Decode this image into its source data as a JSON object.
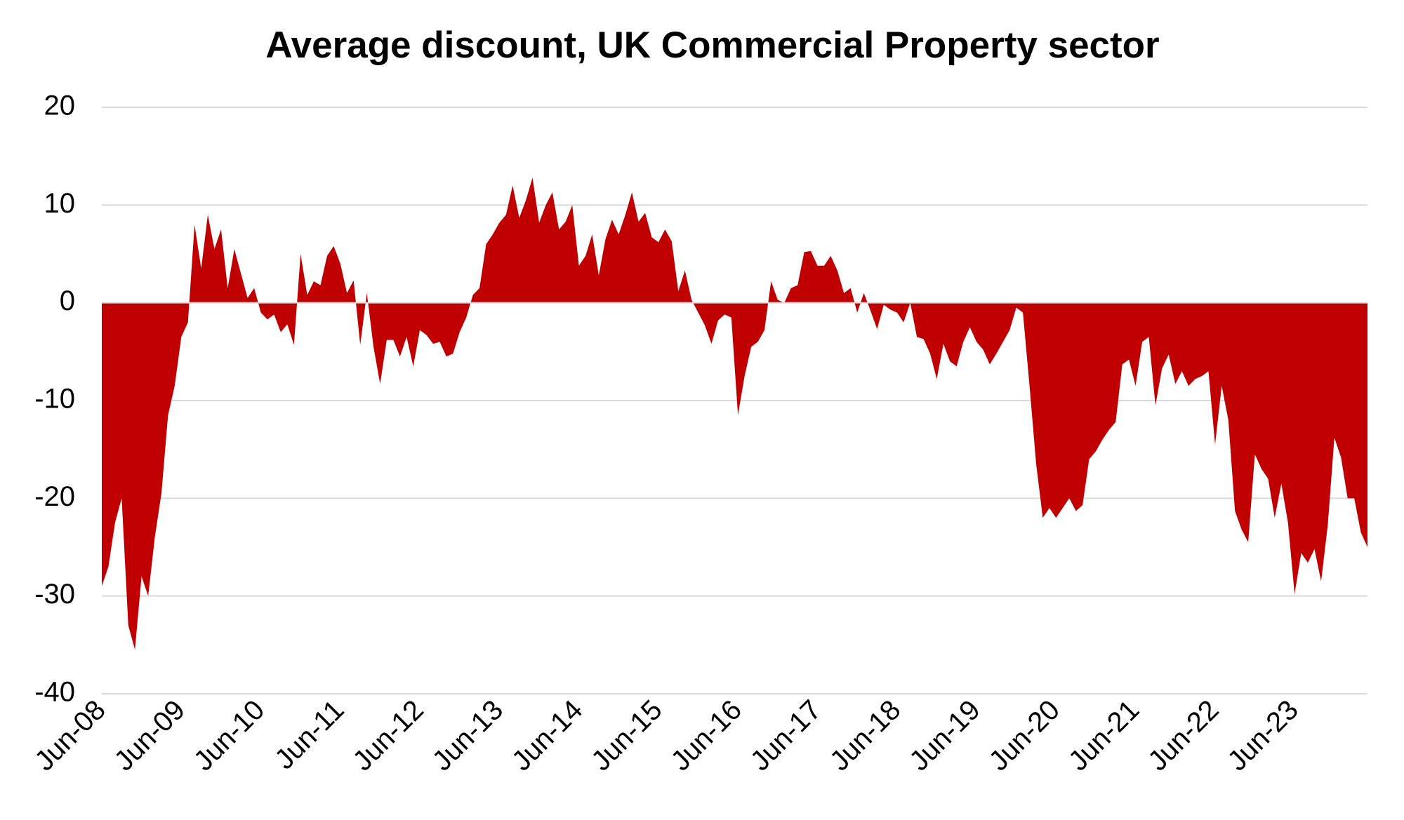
{
  "chart_data": {
    "type": "area",
    "title": "Average discount, UK Commercial Property sector",
    "categories": [
      "Jun-08",
      null,
      null,
      null,
      null,
      null,
      null,
      null,
      null,
      null,
      null,
      null,
      "Jun-09",
      null,
      null,
      null,
      null,
      null,
      null,
      null,
      null,
      null,
      null,
      null,
      "Jun-10",
      null,
      null,
      null,
      null,
      null,
      null,
      null,
      null,
      null,
      null,
      null,
      "Jun-11",
      null,
      null,
      null,
      null,
      null,
      null,
      null,
      null,
      null,
      null,
      null,
      "Jun-12",
      null,
      null,
      null,
      null,
      null,
      null,
      null,
      null,
      null,
      null,
      null,
      "Jun-13",
      null,
      null,
      null,
      null,
      null,
      null,
      null,
      null,
      null,
      null,
      null,
      "Jun-14",
      null,
      null,
      null,
      null,
      null,
      null,
      null,
      null,
      null,
      null,
      null,
      "Jun-15",
      null,
      null,
      null,
      null,
      null,
      null,
      null,
      null,
      null,
      null,
      null,
      "Jun-16",
      null,
      null,
      null,
      null,
      null,
      null,
      null,
      null,
      null,
      null,
      null,
      "Jun-17",
      null,
      null,
      null,
      null,
      null,
      null,
      null,
      null,
      null,
      null,
      null,
      "Jun-18",
      null,
      null,
      null,
      null,
      null,
      null,
      null,
      null,
      null,
      null,
      null,
      "Jun-19",
      null,
      null,
      null,
      null,
      null,
      null,
      null,
      null,
      null,
      null,
      null,
      "Jun-20",
      null,
      null,
      null,
      null,
      null,
      null,
      null,
      null,
      null,
      null,
      null,
      "Jun-21",
      null,
      null,
      null,
      null,
      null,
      null,
      null,
      null,
      null,
      null,
      null,
      "Jun-22",
      null,
      null,
      null,
      null,
      null,
      null,
      null,
      null,
      null,
      null,
      null,
      "Jun-23",
      null,
      null,
      null,
      null,
      null,
      null,
      null,
      null,
      null,
      null,
      null
    ],
    "values": [
      -29,
      -27,
      -22.5,
      -20,
      -33,
      -35.5,
      -28,
      -30,
      -24,
      -19.5,
      -11.5,
      -8.5,
      -3.5,
      -2,
      8,
      3.5,
      9,
      5.5,
      7.5,
      1.5,
      5.5,
      3,
      0.5,
      1.5,
      -1,
      -1.7,
      -1.2,
      -3,
      -2.2,
      -4.3,
      5,
      0.8,
      2.2,
      1.8,
      4.8,
      5.8,
      4,
      1,
      2.3,
      -4.3,
      1,
      -4.5,
      -8.3,
      -3.8,
      -3.8,
      -5.5,
      -3.5,
      -6.5,
      -2.8,
      -3.3,
      -4.2,
      -4,
      -5.5,
      -5.2,
      -3,
      -1.5,
      0.8,
      1.5,
      6,
      7,
      8.2,
      9,
      12,
      8.7,
      10.5,
      12.8,
      8.2,
      10,
      11.3,
      7.5,
      8.3,
      10,
      3.8,
      4.8,
      7,
      2.8,
      6.5,
      8.5,
      7,
      9,
      11.3,
      8.3,
      9.2,
      6.7,
      6.2,
      7.5,
      6.3,
      1.2,
      3.3,
      0.3,
      -1,
      -2.3,
      -4.2,
      -1.8,
      -1.2,
      -1.5,
      -11.5,
      -7.5,
      -4.5,
      -4,
      -2.8,
      2.2,
      0.3,
      0,
      1.5,
      1.8,
      5.2,
      5.3,
      3.8,
      3.8,
      4.8,
      3.3,
      1,
      1.5,
      -1,
      1,
      -0.8,
      -2.7,
      -0.2,
      -0.7,
      -1,
      -2,
      0,
      -3.5,
      -3.7,
      -5.2,
      -7.8,
      -4.2,
      -6,
      -6.5,
      -4,
      -2.5,
      -4,
      -4.8,
      -6.3,
      -5.2,
      -4,
      -2.8,
      -0.5,
      -1,
      -8.5,
      -16.5,
      -22,
      -21,
      -22,
      -21,
      -20,
      -21.3,
      -20.7,
      -16,
      -15.2,
      -14,
      -13,
      -12.2,
      -6.3,
      -5.8,
      -8.5,
      -4,
      -3.5,
      -10.5,
      -6.7,
      -5.3,
      -8.3,
      -7,
      -8.5,
      -7.8,
      -7.5,
      -7,
      -14.5,
      -8.5,
      -12,
      -21.3,
      -23.2,
      -24.5,
      -15.5,
      -17,
      -18,
      -22,
      -18.5,
      -22.5,
      -29.8,
      -25.6,
      -26.6,
      -25.2,
      -28.5,
      -22.8,
      -13.8,
      -15.8,
      -20,
      -20,
      -23.5,
      -25
    ],
    "color": "#c00000",
    "ylim": [
      -40,
      20
    ],
    "yticks": [
      -40,
      -30,
      -20,
      -10,
      0,
      10,
      20
    ],
    "grid": true
  }
}
